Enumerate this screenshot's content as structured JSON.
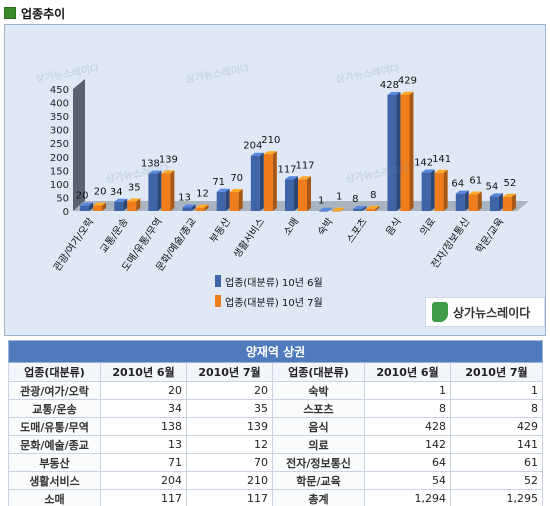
{
  "header": {
    "title": "업종추이"
  },
  "colors": {
    "series1": "#3f64a8",
    "series2": "#f07d1c",
    "table_header": "#4f7bbd"
  },
  "chart_data": {
    "type": "bar",
    "categories": [
      "관광/여가/오락",
      "교통/운송",
      "도매/유통/무역",
      "문화/예술/종교",
      "부동산",
      "생활서비스",
      "소매",
      "숙박",
      "스포츠",
      "음식",
      "의료",
      "전자/정보통신",
      "학문/교육"
    ],
    "series": [
      {
        "name": "업종(대분류) 10년 6월",
        "values": [
          20,
          34,
          138,
          13,
          71,
          204,
          117,
          1,
          8,
          428,
          142,
          64,
          54
        ]
      },
      {
        "name": "업종(대분류) 10년 7월",
        "values": [
          20,
          35,
          139,
          12,
          70,
          210,
          117,
          1,
          8,
          429,
          141,
          61,
          52
        ]
      }
    ],
    "ylim": [
      0,
      450
    ],
    "yticks": [
      "0",
      "50",
      "100",
      "150",
      "200",
      "250",
      "300",
      "350",
      "400",
      "450"
    ],
    "legend_position": "bottom-right",
    "grid": false
  },
  "logo": {
    "text": "상가뉴스레이다"
  },
  "watermark": "상가뉴스레이다",
  "table": {
    "caption": "양재역 상권",
    "columns": [
      "업종(대분류)",
      "2010년 6월",
      "2010년 7월",
      "업종(대분류)",
      "2010년 6월",
      "2010년 7월"
    ],
    "rows": [
      [
        "관광/여가/오락",
        "20",
        "20",
        "숙박",
        "1",
        "1"
      ],
      [
        "교통/운송",
        "34",
        "35",
        "스포츠",
        "8",
        "8"
      ],
      [
        "도매/유통/무역",
        "138",
        "139",
        "음식",
        "428",
        "429"
      ],
      [
        "문화/예술/종교",
        "13",
        "12",
        "의료",
        "142",
        "141"
      ],
      [
        "부동산",
        "71",
        "70",
        "전자/정보통신",
        "64",
        "61"
      ],
      [
        "생활서비스",
        "204",
        "210",
        "학문/교육",
        "54",
        "52"
      ],
      [
        "소매",
        "117",
        "117",
        "총계",
        "1,294",
        "1,295"
      ]
    ]
  }
}
